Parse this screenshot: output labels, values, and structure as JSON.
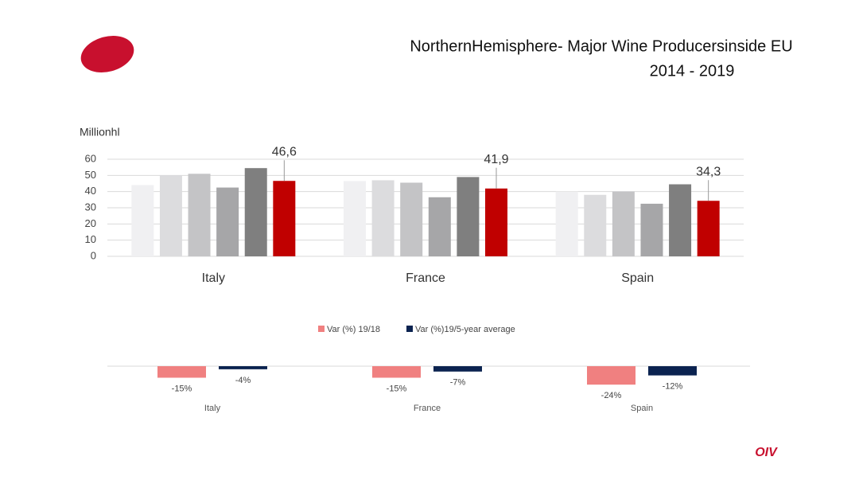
{
  "title": "NorthernHemisphere- Major Wine Producersinside EU",
  "subtitle": "2014 - 2019",
  "logo": "OIV",
  "chart_data": [
    {
      "type": "bar",
      "y_label": "Millionhl",
      "categories": [
        "Italy",
        "France",
        "Spain"
      ],
      "series": [
        {
          "color": "#f0f0f2",
          "values": [
            44,
            46.5,
            40
          ]
        },
        {
          "color": "#dcdcde",
          "values": [
            50,
            47,
            38
          ]
        },
        {
          "color": "#c4c4c6",
          "values": [
            51,
            45.5,
            40
          ]
        },
        {
          "color": "#a6a6a8",
          "values": [
            42.5,
            36.5,
            32.5
          ]
        },
        {
          "color": "#7f7f7f",
          "values": [
            54.5,
            49,
            44.5
          ]
        },
        {
          "color": "#c00000",
          "values": [
            46.6,
            41.9,
            34.3
          ],
          "value_labels": [
            "46,6",
            "41,9",
            "34,3"
          ]
        }
      ],
      "ylim": [
        0,
        60
      ],
      "yticks": [
        0,
        10,
        20,
        30,
        40,
        50,
        60
      ],
      "grid": true
    },
    {
      "type": "bar",
      "categories": [
        "Italy",
        "France",
        "Spain"
      ],
      "series": [
        {
          "name": "Var (%)  19/18",
          "color": "#f08080",
          "values": [
            -15,
            -15,
            -24
          ],
          "value_labels": [
            "-15%",
            "-15%",
            "-24%"
          ]
        },
        {
          "name": "Var (%)19/5-year  average",
          "color": "#0b2350",
          "values": [
            -4,
            -7,
            -12
          ],
          "value_labels": [
            "-4%",
            "-7%",
            "-12%"
          ]
        }
      ],
      "ylim": [
        -30,
        0
      ]
    }
  ]
}
